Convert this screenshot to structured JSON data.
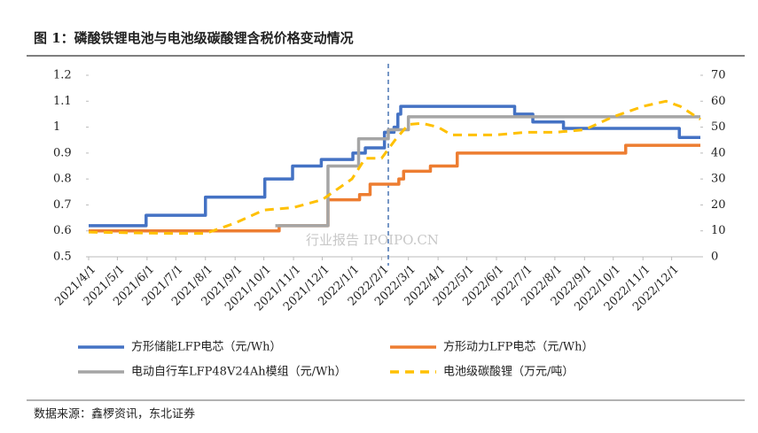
{
  "chart_data": {
    "type": "line",
    "title": "图 1：磷酸铁锂电池与电池级碳酸锂含税价格变动情况",
    "source": "数据来源：鑫椤资讯，东北证券",
    "watermark": "行业报告 IPOIPO.CN",
    "xlim": [
      "2021/4/1",
      "2022/12/31"
    ],
    "xticks": [
      "2021/4/1",
      "2021/5/1",
      "2021/6/1",
      "2021/7/1",
      "2021/8/1",
      "2021/9/1",
      "2021/10/1",
      "2021/11/1",
      "2021/12/1",
      "2022/1/1",
      "2022/2/1",
      "2022/3/1",
      "2022/4/1",
      "2022/5/1",
      "2022/6/1",
      "2022/7/1",
      "2022/8/1",
      "2022/9/1",
      "2022/10/1",
      "2022/11/1",
      "2022/12/1"
    ],
    "ylim": [
      0.5,
      1.2
    ],
    "yticks": [
      0.5,
      0.6,
      0.7,
      0.8,
      0.9,
      1,
      1.1,
      1.2
    ],
    "y2lim": [
      0,
      70
    ],
    "y2ticks": [
      0,
      10,
      20,
      30,
      40,
      50,
      60,
      70
    ],
    "vline": "2022/2/8",
    "series": [
      {
        "name": "方形储能LFP电芯（元/Wh）",
        "color": "#4472c4",
        "step": true,
        "x": [
          "2021/4/1",
          "2021/5/31",
          "2021/8/1",
          "2021/10/2",
          "2021/10/31",
          "2021/11/30",
          "2022/1/2",
          "2022/1/15",
          "2022/2/4",
          "2022/2/14",
          "2022/2/18",
          "2022/2/21",
          "2022/6/20",
          "2022/7/9",
          "2022/8/10",
          "2022/12/9",
          "2022/12/31"
        ],
        "values": [
          0.62,
          0.66,
          0.73,
          0.8,
          0.85,
          0.875,
          0.9,
          0.92,
          0.98,
          1.0,
          1.05,
          1.08,
          1.05,
          1.02,
          0.995,
          0.96,
          0.96
        ]
      },
      {
        "name": "方形动力LFP电芯（元/Wh）",
        "color": "#ed7d31",
        "step": true,
        "x": [
          "2021/4/1",
          "2021/10/17",
          "2021/12/7",
          "2022/1/9",
          "2022/1/20",
          "2022/2/19",
          "2022/2/24",
          "2022/3/24",
          "2022/4/21",
          "2022/10/14",
          "2022/12/31"
        ],
        "values": [
          0.6,
          0.62,
          0.72,
          0.74,
          0.78,
          0.8,
          0.83,
          0.85,
          0.9,
          0.93,
          0.93
        ]
      },
      {
        "name": "电动自行车LFP48V24Ah模组（元/Wh）",
        "color": "#a5a5a5",
        "step": true,
        "x": [
          "2021/10/13",
          "2021/12/7",
          "2022/1/8",
          "2022/2/8",
          "2022/3/1",
          "2022/12/31"
        ],
        "values": [
          0.62,
          0.85,
          0.955,
          0.99,
          1.04,
          1.04
        ]
      },
      {
        "name": "电池级碳酸锂（万元/吨）",
        "color": "#ffc000",
        "axis": "y2",
        "dashed": true,
        "x": [
          "2021/4/1",
          "2021/7/1",
          "2021/8/1",
          "2021/9/1",
          "2021/10/1",
          "2021/11/1",
          "2021/12/1",
          "2022/1/1",
          "2022/1/15",
          "2022/2/1",
          "2022/2/15",
          "2022/3/1",
          "2022/3/15",
          "2022/4/1",
          "2022/4/15",
          "2022/5/1",
          "2022/6/1",
          "2022/7/1",
          "2022/8/1",
          "2022/9/1",
          "2022/10/1",
          "2022/11/1",
          "2022/11/25",
          "2022/12/10",
          "2022/12/31"
        ],
        "values": [
          9.5,
          9,
          9,
          13,
          18,
          19,
          22,
          30,
          38,
          38,
          45,
          51,
          51.5,
          50,
          47,
          47,
          47,
          48,
          48,
          49,
          54,
          58,
          60,
          58,
          53
        ]
      }
    ]
  }
}
